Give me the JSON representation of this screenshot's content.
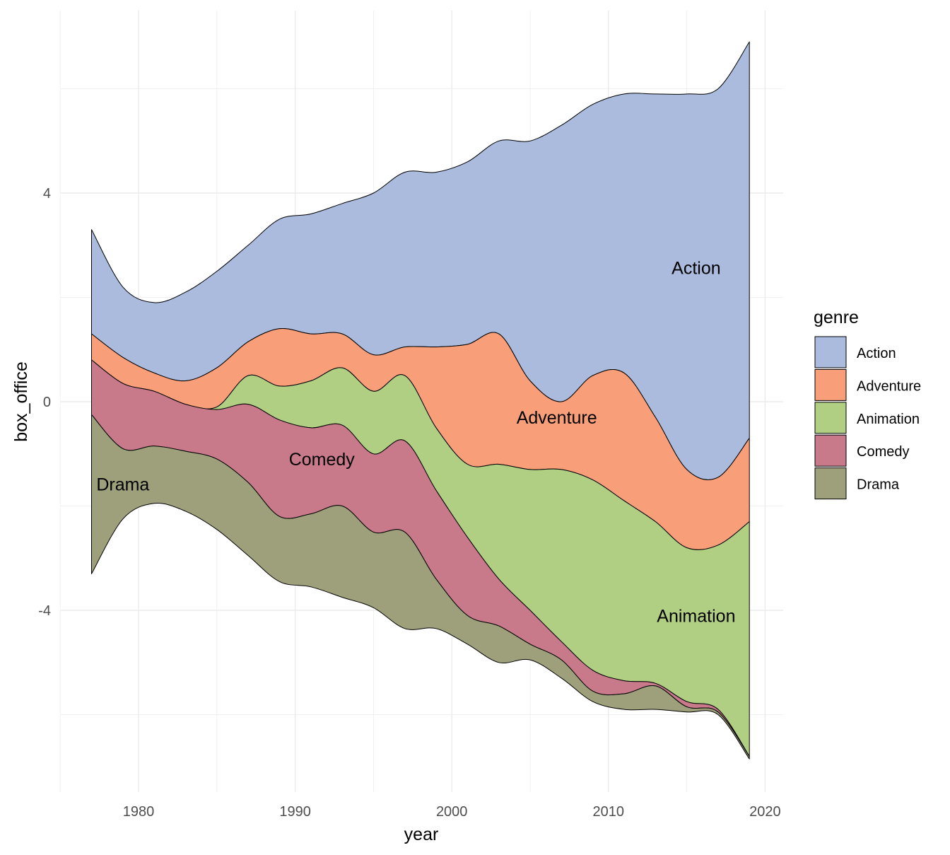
{
  "chart_data": {
    "type": "area",
    "subtype": "streamgraph",
    "xlabel": "year",
    "ylabel": "box_office",
    "xlim": [
      1975,
      2021
    ],
    "ylim": [
      -7.5,
      7.5
    ],
    "x_ticks": [
      1980,
      1990,
      2000,
      2010,
      2020
    ],
    "y_ticks": [
      -4,
      0,
      4
    ],
    "grid": true,
    "legend": {
      "title": "genre",
      "position": "right"
    },
    "stack_order_top_to_bottom": [
      "Action",
      "Adventure",
      "Animation",
      "Comedy",
      "Drama"
    ],
    "boundaries_note": "boundary values listed from top edge to bottom edge (6 curves) for each year",
    "x": [
      1977,
      1979,
      1981,
      1983,
      1985,
      1987,
      1989,
      1991,
      1993,
      1995,
      1997,
      1999,
      2001,
      2003,
      2005,
      2007,
      2009,
      2011,
      2013,
      2015,
      2017,
      2019
    ],
    "series": [
      {
        "name": "Action",
        "color": "#aabbdd",
        "upper": [
          3.3,
          2.2,
          1.9,
          2.1,
          2.5,
          3.0,
          3.5,
          3.6,
          3.8,
          4.0,
          4.4,
          4.4,
          4.6,
          5.0,
          5.0,
          5.3,
          5.7,
          5.9,
          5.9,
          5.9,
          6.0,
          6.9
        ],
        "lower": [
          1.3,
          0.85,
          0.55,
          0.4,
          0.65,
          1.15,
          1.4,
          1.3,
          1.3,
          0.9,
          1.05,
          1.05,
          1.1,
          1.3,
          0.4,
          0.0,
          0.5,
          0.55,
          -0.3,
          -1.3,
          -1.45,
          -0.7
        ]
      },
      {
        "name": "Adventure",
        "color": "#f89e78",
        "upper": [
          1.3,
          0.85,
          0.55,
          0.4,
          0.65,
          1.15,
          1.4,
          1.3,
          1.3,
          0.9,
          1.05,
          1.05,
          1.1,
          1.3,
          0.4,
          0.0,
          0.5,
          0.55,
          -0.3,
          -1.3,
          -1.45,
          -0.7
        ],
        "lower": [
          0.8,
          0.35,
          0.2,
          -0.05,
          -0.1,
          0.5,
          0.3,
          0.4,
          0.65,
          0.2,
          0.5,
          -0.5,
          -1.2,
          -1.2,
          -1.3,
          -1.3,
          -1.5,
          -1.9,
          -2.3,
          -2.8,
          -2.75,
          -2.3
        ]
      },
      {
        "name": "Animation",
        "color": "#b0cf82",
        "upper": [
          0.8,
          0.35,
          0.2,
          -0.05,
          -0.1,
          0.5,
          0.3,
          0.4,
          0.65,
          0.2,
          0.5,
          -0.5,
          -1.2,
          -1.2,
          -1.3,
          -1.3,
          -1.5,
          -1.9,
          -2.3,
          -2.8,
          -2.75,
          -2.3
        ],
        "lower": [
          0.8,
          0.35,
          0.2,
          -0.05,
          -0.15,
          -0.05,
          -0.35,
          -0.5,
          -0.45,
          -1.0,
          -0.75,
          -1.7,
          -2.6,
          -3.4,
          -4.0,
          -4.6,
          -5.15,
          -5.35,
          -5.4,
          -5.75,
          -5.9,
          -6.8
        ]
      },
      {
        "name": "Comedy",
        "color": "#c87a8a",
        "upper": [
          0.8,
          0.35,
          0.2,
          -0.05,
          -0.15,
          -0.05,
          -0.35,
          -0.5,
          -0.45,
          -1.0,
          -0.75,
          -1.7,
          -2.6,
          -3.4,
          -4.0,
          -4.6,
          -5.15,
          -5.35,
          -5.4,
          -5.75,
          -5.9,
          -6.8
        ],
        "lower": [
          -0.25,
          -0.9,
          -0.85,
          -0.95,
          -1.1,
          -1.55,
          -2.2,
          -2.15,
          -2.0,
          -2.5,
          -2.5,
          -3.4,
          -4.1,
          -4.3,
          -4.65,
          -4.95,
          -5.55,
          -5.6,
          -5.45,
          -5.85,
          -5.95,
          -6.8
        ]
      },
      {
        "name": "Drama",
        "color": "#9ea07b",
        "upper": [
          -0.25,
          -0.9,
          -0.85,
          -0.95,
          -1.1,
          -1.55,
          -2.2,
          -2.15,
          -2.0,
          -2.5,
          -2.5,
          -3.4,
          -4.1,
          -4.3,
          -4.65,
          -4.95,
          -5.55,
          -5.6,
          -5.45,
          -5.85,
          -5.95,
          -6.8
        ],
        "lower": [
          -3.3,
          -2.25,
          -1.95,
          -2.1,
          -2.45,
          -2.95,
          -3.45,
          -3.55,
          -3.75,
          -3.95,
          -4.35,
          -4.35,
          -4.65,
          -5.0,
          -4.95,
          -5.3,
          -5.75,
          -5.9,
          -5.9,
          -5.95,
          -6.0,
          -6.85
        ]
      }
    ],
    "annotations": [
      {
        "text": "Action",
        "x": 2015.6,
        "y": 2.57
      },
      {
        "text": "Adventure",
        "x": 2006.7,
        "y": -0.3
      },
      {
        "text": "Animation",
        "x": 2015.6,
        "y": -4.1
      },
      {
        "text": "Comedy",
        "x": 1991.7,
        "y": -1.1
      },
      {
        "text": "Drama",
        "x": 1979.0,
        "y": -1.58
      }
    ]
  }
}
